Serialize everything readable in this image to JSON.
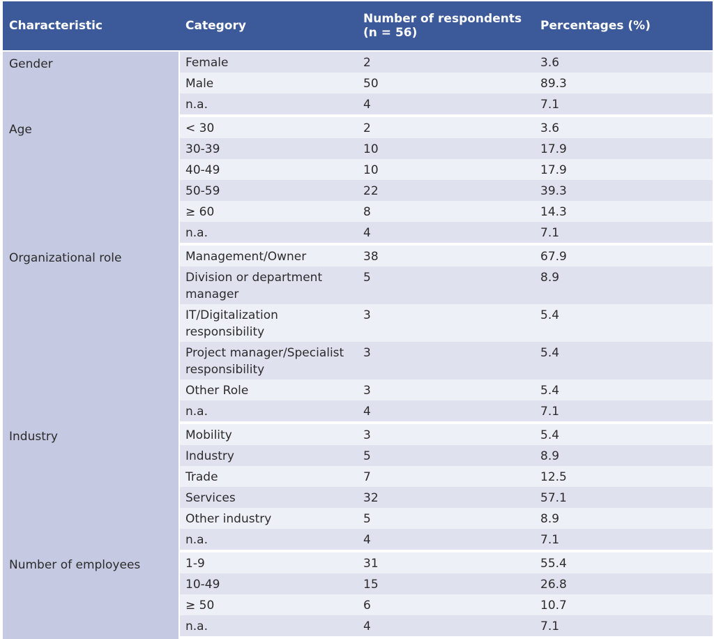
{
  "header": {
    "characteristic": "Characteristic",
    "category": "Category",
    "respondents_line1": "Number of respondents",
    "respondents_line2": "(n = 56)",
    "percentages": "Percentages (%)"
  },
  "groups": [
    {
      "characteristic": "Gender",
      "rows": [
        {
          "category": "Female",
          "count": "2",
          "percent": "3.6"
        },
        {
          "category": "Male",
          "count": "50",
          "percent": "89.3"
        },
        {
          "category": "n.a.",
          "count": "4",
          "percent": "7.1"
        }
      ]
    },
    {
      "characteristic": "Age",
      "rows": [
        {
          "category": "< 30",
          "count": "2",
          "percent": "3.6"
        },
        {
          "category": "30-39",
          "count": "10",
          "percent": "17.9"
        },
        {
          "category": "40-49",
          "count": "10",
          "percent": "17.9"
        },
        {
          "category": "50-59",
          "count": "22",
          "percent": "39.3"
        },
        {
          "category": "≥ 60",
          "count": "8",
          "percent": "14.3"
        },
        {
          "category": "n.a.",
          "count": "4",
          "percent": "7.1"
        }
      ]
    },
    {
      "characteristic": "Organizational role",
      "rows": [
        {
          "category": "Management/Owner",
          "count": "38",
          "percent": "67.9"
        },
        {
          "category": "Division or department manager",
          "count": "5",
          "percent": "8.9"
        },
        {
          "category": "IT/Digitalization responsibility",
          "count": "3",
          "percent": "5.4"
        },
        {
          "category": "Project manager/Specialist responsibility",
          "count": "3",
          "percent": "5.4"
        },
        {
          "category": "Other Role",
          "count": "3",
          "percent": "5.4"
        },
        {
          "category": "n.a.",
          "count": "4",
          "percent": "7.1"
        }
      ]
    },
    {
      "characteristic": "Industry",
      "rows": [
        {
          "category": "Mobility",
          "count": "3",
          "percent": "5.4"
        },
        {
          "category": "Industry",
          "count": "5",
          "percent": "8.9"
        },
        {
          "category": "Trade",
          "count": "7",
          "percent": "12.5"
        },
        {
          "category": "Services",
          "count": "32",
          "percent": "57.1"
        },
        {
          "category": "Other industry",
          "count": "5",
          "percent": "8.9"
        },
        {
          "category": "n.a.",
          "count": "4",
          "percent": "7.1"
        }
      ]
    },
    {
      "characteristic": "Number of employees",
      "rows": [
        {
          "category": "1-9",
          "count": "31",
          "percent": "55.4"
        },
        {
          "category": "10-49",
          "count": "15",
          "percent": "26.8"
        },
        {
          "category": "≥ 50",
          "count": "6",
          "percent": "10.7"
        },
        {
          "category": "n.a.",
          "count": "4",
          "percent": "7.1"
        }
      ]
    }
  ]
}
